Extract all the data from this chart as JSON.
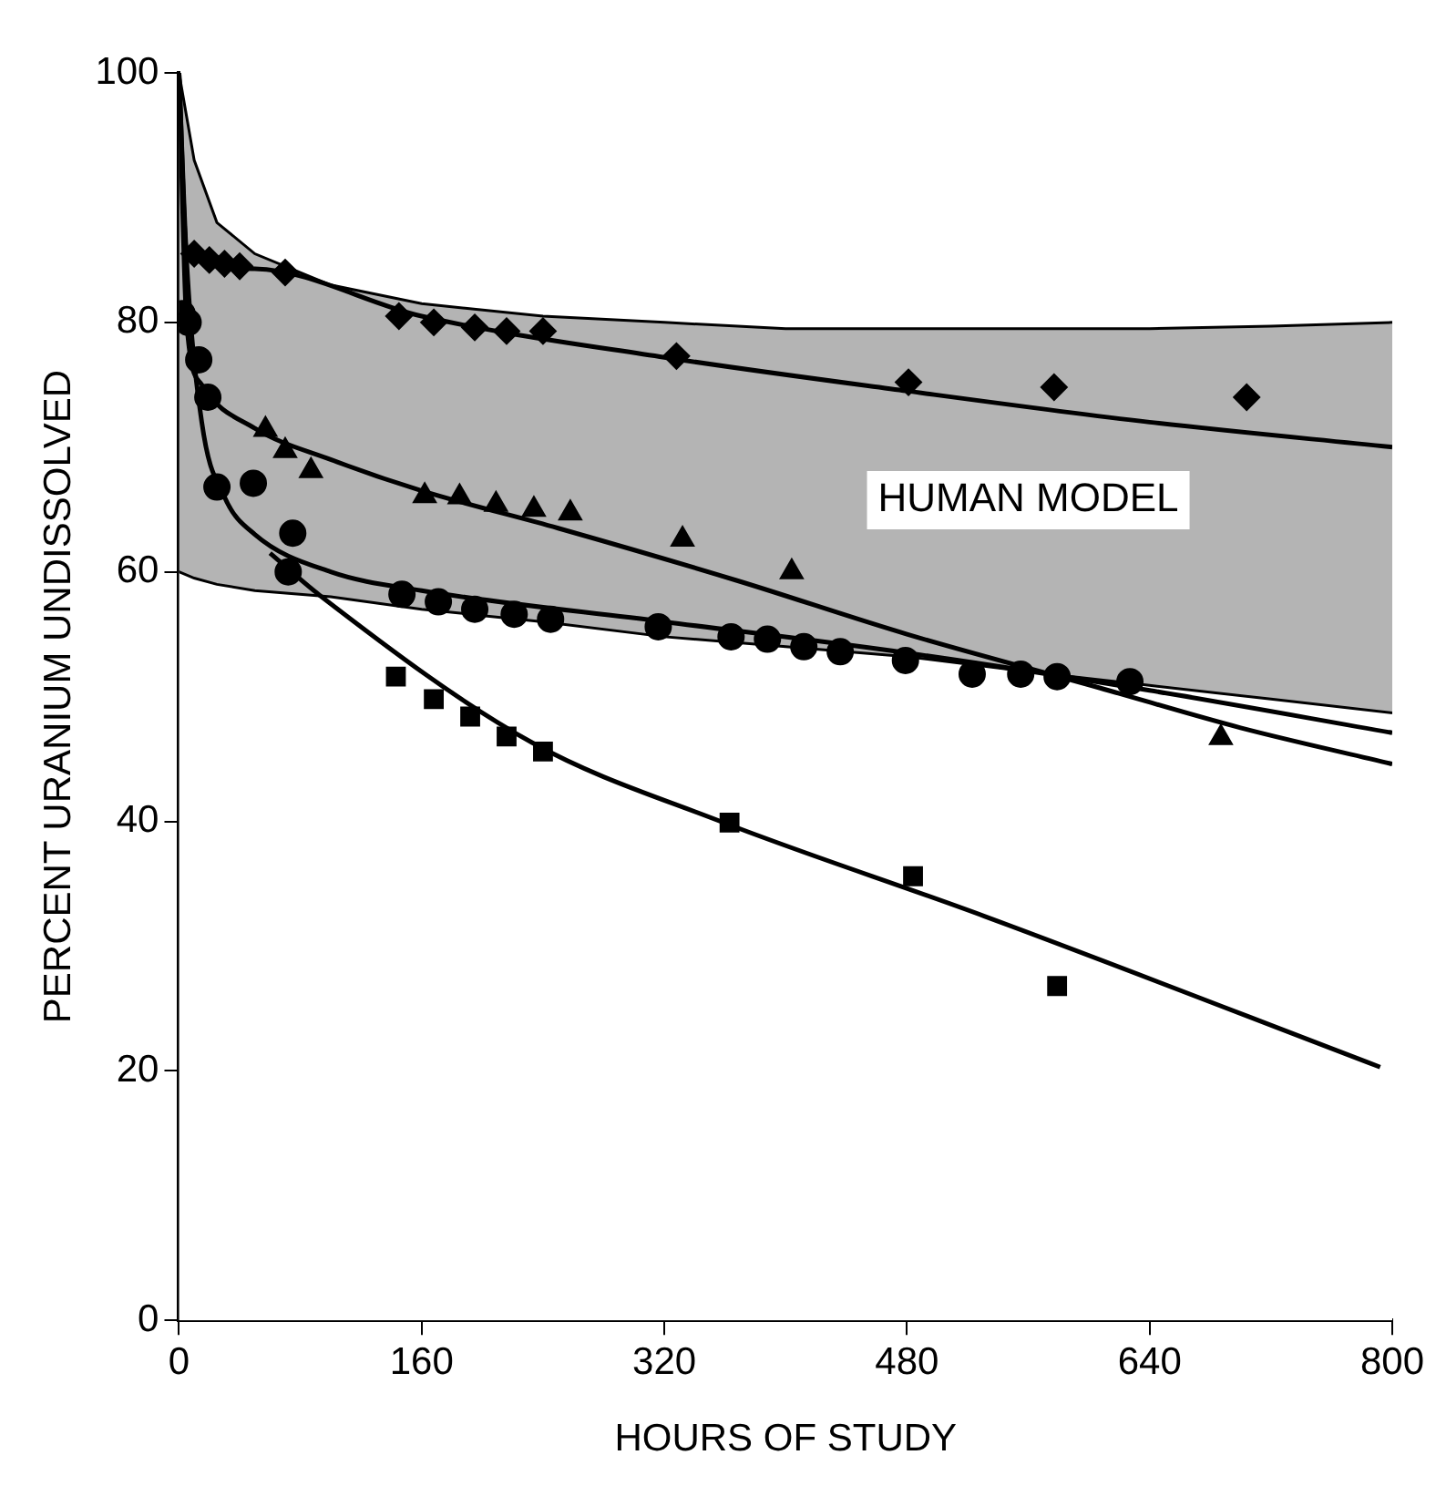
{
  "chart_data": {
    "type": "scatter",
    "xlabel": "HOURS OF STUDY",
    "ylabel": "PERCENT URANIUM UNDISSOLVED",
    "xlim": [
      0,
      800
    ],
    "ylim": [
      0,
      100
    ],
    "xticks": [
      0,
      160,
      320,
      480,
      640,
      800
    ],
    "yticks": [
      0,
      20,
      40,
      60,
      80,
      100
    ],
    "grid": false,
    "legend": false,
    "series": [
      {
        "type": "area",
        "name": "HUMAN MODEL",
        "color": "#b4b4b4",
        "x": [
          0,
          10,
          25,
          50,
          100,
          160,
          240,
          320,
          400,
          480,
          560,
          640,
          720,
          800
        ],
        "values": [
          100,
          93,
          88,
          85.5,
          83,
          81.5,
          80.5,
          80,
          79.5,
          79.5,
          79.5,
          79.5,
          79.7,
          80
        ]
      },
      {
        "type": "area",
        "color": "#ffffff",
        "x": [
          0,
          10,
          25,
          50,
          100,
          160,
          240,
          320,
          400,
          480,
          560,
          640,
          720,
          800
        ],
        "values": [
          60,
          59.5,
          59,
          58.5,
          58,
          57,
          56,
          54.8,
          54,
          53.2,
          52,
          50.9,
          49.8,
          48.7
        ]
      },
      {
        "marker": "diamond",
        "color": "#000000",
        "x": [
          10,
          20,
          30,
          40,
          70,
          145,
          168,
          195,
          216,
          240,
          328,
          481,
          577,
          704
        ],
        "values": [
          85.5,
          85,
          84.7,
          84.5,
          84,
          80.5,
          80,
          79.6,
          79.3,
          79.3,
          77.3,
          75.2,
          74.8,
          74
        ]
      },
      {
        "marker": "triangle",
        "color": "#000000",
        "x": [
          57,
          70,
          87,
          162,
          185,
          209,
          234,
          258,
          332,
          404,
          687
        ],
        "values": [
          71.4,
          69.7,
          68.1,
          66.1,
          66,
          65.4,
          65,
          64.7,
          62.6,
          60,
          46.7
        ]
      },
      {
        "marker": "circle",
        "color": "#000000",
        "x": [
          2,
          6,
          13,
          19,
          25,
          49,
          72,
          75,
          147,
          171,
          195,
          221,
          245,
          316,
          364,
          388,
          412,
          436,
          479,
          523,
          555,
          579,
          627
        ],
        "values": [
          80.7,
          80,
          77,
          74,
          66.8,
          67.1,
          60,
          63.1,
          58.2,
          57.6,
          57,
          56.6,
          56.2,
          55.6,
          54.8,
          54.6,
          54,
          53.6,
          52.9,
          51.8,
          51.8,
          51.6,
          51.2
        ]
      },
      {
        "marker": "square",
        "color": "#000000",
        "x": [
          143,
          168,
          192,
          216,
          240,
          363,
          484,
          579
        ],
        "values": [
          51.6,
          49.8,
          48.4,
          46.8,
          45.6,
          39.9,
          35.6,
          26.8
        ]
      },
      {
        "type": "line",
        "marker": "none",
        "color": "#000000",
        "x": [
          0,
          5,
          50,
          160,
          320,
          480,
          640,
          800
        ],
        "values": [
          100,
          86,
          84.3,
          80.5,
          77.2,
          74.5,
          72,
          70
        ]
      },
      {
        "type": "line",
        "marker": "none",
        "color": "#000000",
        "x": [
          0,
          5,
          15,
          50,
          100,
          160,
          250,
          368,
          480,
          607,
          700,
          800
        ],
        "values": [
          100,
          80,
          75,
          71.5,
          69,
          66.5,
          63.5,
          59.3,
          55,
          50.7,
          47.5,
          44.6
        ]
      },
      {
        "type": "line",
        "marker": "none",
        "color": "#000000",
        "x": [
          0,
          5,
          15,
          30,
          50,
          100,
          160,
          320,
          480,
          640,
          800
        ],
        "values": [
          100,
          85,
          72,
          66,
          63,
          60,
          58.5,
          56,
          53.5,
          50.5,
          47.1
        ]
      },
      {
        "type": "line",
        "marker": "none",
        "color": "#000000",
        "x": [
          60,
          93,
          233,
          357,
          531,
          792
        ],
        "values": [
          61.5,
          58.1,
          46.3,
          40,
          32.4,
          20.3
        ]
      }
    ]
  }
}
